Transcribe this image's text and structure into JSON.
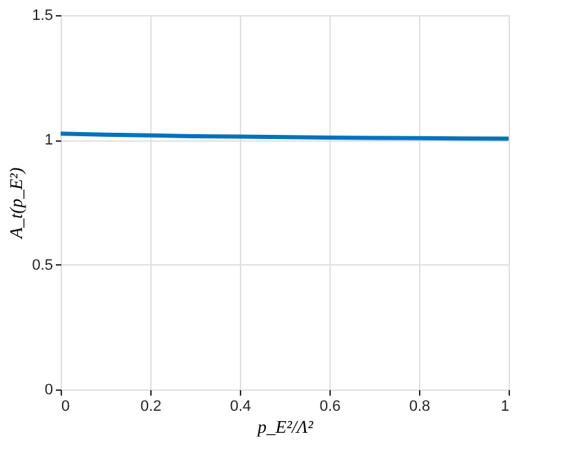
{
  "chart_data": {
    "type": "line",
    "xlabel": "p_E²/Λ²",
    "ylabel": "A_t(p_E²)",
    "x": [
      0,
      0.1,
      0.2,
      0.3,
      0.4,
      0.5,
      0.6,
      0.7,
      0.8,
      0.9,
      1
    ],
    "series": [
      {
        "color": "#0072bd",
        "values": [
          1.025,
          1.021,
          1.018,
          1.015,
          1.013,
          1.011,
          1.009,
          1.008,
          1.007,
          1.006,
          1.005
        ]
      }
    ],
    "xlim": [
      0,
      1
    ],
    "xticks": [
      0,
      0.2,
      0.4,
      0.6,
      0.8,
      1
    ],
    "ylim": [
      0,
      1.5
    ],
    "yticks": [
      0,
      0.5,
      1,
      1.5
    ],
    "grid": true,
    "line_style": "solid",
    "marker": "none"
  }
}
